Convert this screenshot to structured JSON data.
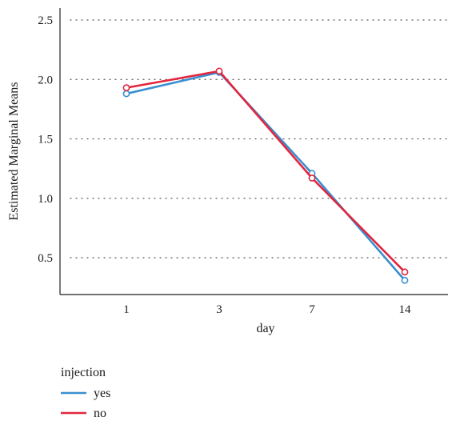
{
  "chart_data": {
    "type": "line",
    "categories": [
      "1",
      "3",
      "7",
      "14"
    ],
    "xlabel": "day",
    "ylabel": "Estimated Marginal Means",
    "ylim": [
      0.2,
      2.6
    ],
    "yticks": [
      "0.5",
      "1.0",
      "1.5",
      "2.0",
      "2.5"
    ],
    "ytick_values": [
      0.5,
      1.0,
      1.5,
      2.0,
      2.5
    ],
    "grid": "horizontal-dotted",
    "legend": {
      "title": "injection",
      "placement": "bottom-left"
    },
    "series": [
      {
        "name": "yes",
        "color": "#3a8fd0",
        "values": [
          1.88,
          2.06,
          1.21,
          0.31
        ]
      },
      {
        "name": "no",
        "color": "#e2263e",
        "values": [
          1.93,
          2.07,
          1.17,
          0.38
        ]
      }
    ]
  }
}
